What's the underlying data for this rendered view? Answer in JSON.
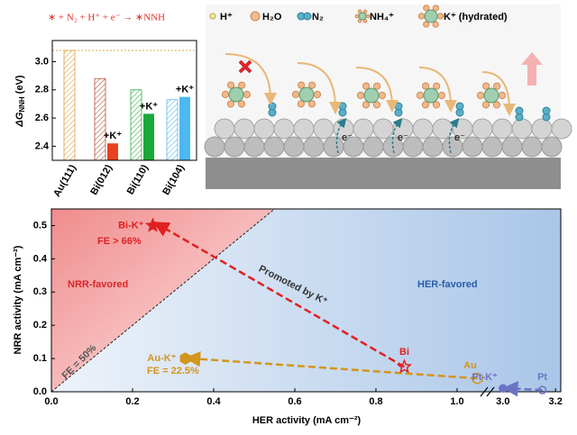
{
  "chart_data": [
    {
      "type": "bar",
      "title": "∗ + N₂ + H⁺ + e⁻ → ∗NNH",
      "ylabel": "ΔG",
      "ylabel_sub": "NNH",
      "ylabel_unit": " (eV)",
      "categories": [
        "Au(111)",
        "Bi(012)",
        "Bi(110)",
        "Bi(104)"
      ],
      "series": [
        {
          "values": [
            3.08,
            2.88,
            2.8,
            2.73
          ],
          "colors": [
            "#d9a441",
            "#b5553a",
            "#2fae4a",
            "#5ab8e6"
          ],
          "hatched": true
        },
        {
          "name": "+K⁺",
          "values": [
            null,
            2.42,
            2.63,
            2.75
          ],
          "colors": [
            null,
            "#e8421e",
            "#1aa83a",
            "#4db8f2"
          ],
          "hatched": false
        }
      ],
      "ylim": [
        2.3,
        3.15
      ],
      "yticks": [
        2.4,
        2.6,
        2.8,
        {
          "value": 3,
          "label": "3.0"
        }
      ]
    },
    {
      "type": "scatter",
      "xlabel": "HER activity (mA cm⁻²)",
      "ylabel": "NRR activity (mA cm⁻²)",
      "xlim": [
        0,
        3.22
      ],
      "xbreak": [
        1.1,
        2.98
      ],
      "ylim": [
        0,
        0.55
      ],
      "xticks": [
        {
          "value": 0,
          "label": "0.0"
        },
        0.2,
        0.4,
        0.6,
        0.8,
        {
          "value": 1,
          "label": "1.0"
        },
        {
          "value": 3,
          "label": "3.0"
        },
        3.2
      ],
      "yticks": [
        {
          "value": 0,
          "label": "0.0"
        },
        0.1,
        0.2,
        0.3,
        0.4,
        0.5
      ],
      "points": [
        {
          "label": "Bi",
          "x": 0.87,
          "y": 0.075,
          "color": "#e02020",
          "marker": "star",
          "filled": false
        },
        {
          "label": "Bi-K⁺",
          "x": 0.25,
          "y": 0.5,
          "color": "#e02020",
          "marker": "star",
          "filled": true
        },
        {
          "label": "Au",
          "x": 1.05,
          "y": 0.04,
          "color": "#d4951c",
          "marker": "hexagon",
          "filled": false
        },
        {
          "label": "Au-K⁺",
          "x": 0.33,
          "y": 0.1,
          "color": "#d4951c",
          "marker": "hexagon",
          "filled": true
        },
        {
          "label": "Pt",
          "x": 3.15,
          "y": 0.005,
          "color": "#6b74c4",
          "marker": "circle",
          "filled": false
        },
        {
          "label": "Pt-K⁺",
          "x": 3.0,
          "y": 0.01,
          "color": "#6b74c4",
          "marker": "circle",
          "filled": true
        }
      ],
      "fe_labels": [
        "FE > 66%",
        "FE = 22.5%"
      ],
      "regions": [
        "NRR-favored",
        "HER-favored"
      ],
      "diagonal_label": "FE = 50%",
      "arrow_label": "Promoted by K⁺"
    }
  ],
  "schematic": {
    "legend": [
      "H⁺",
      "H₂O",
      "N₂",
      "NH₄⁺",
      "K⁺ (hydrated)"
    ],
    "electron_label": "e⁻"
  }
}
